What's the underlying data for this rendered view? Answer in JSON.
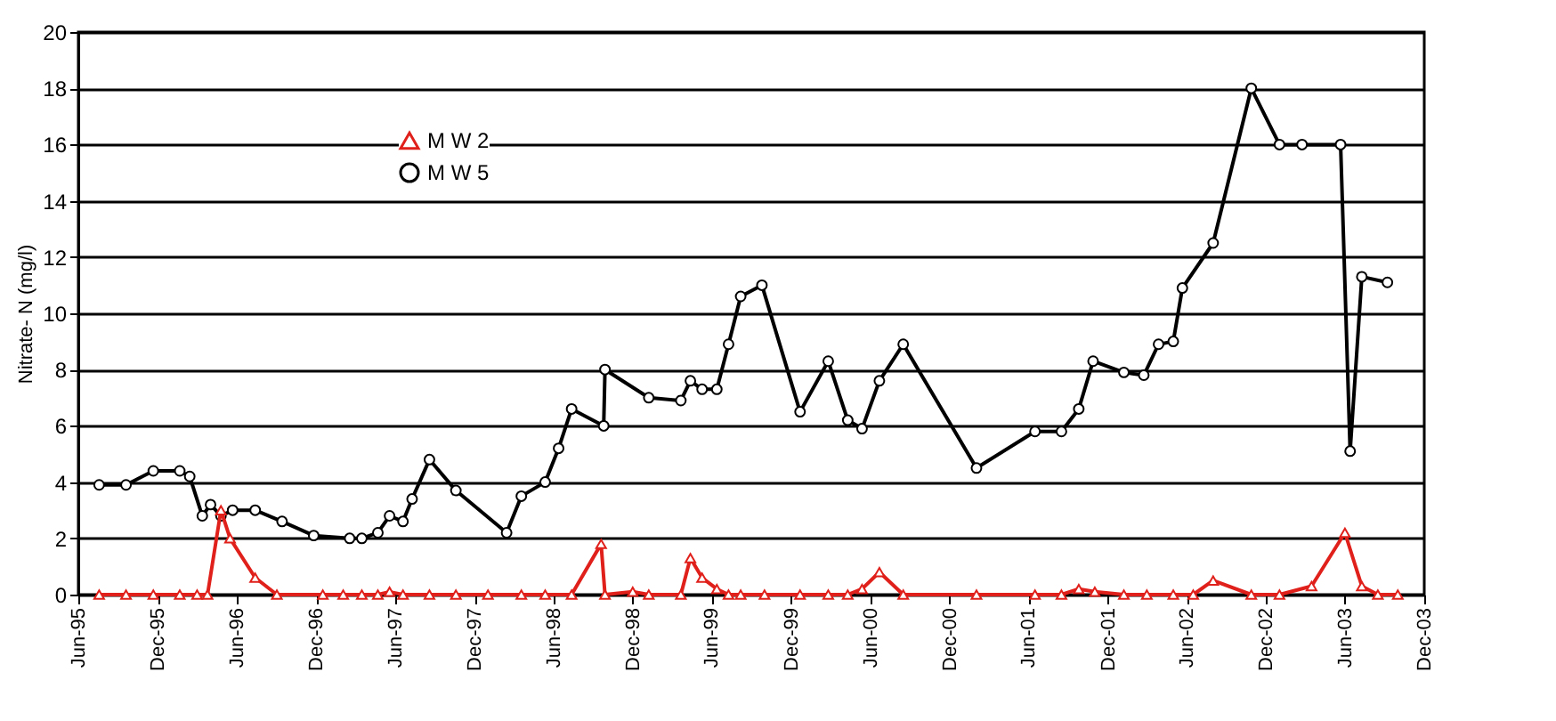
{
  "chart_data": {
    "type": "line",
    "ylabel": "Nitrate- N (mg/l)",
    "xlim": [
      "1995-06-01",
      "2003-12-01"
    ],
    "xticks": [
      {
        "value": "1995-06-01",
        "label": "Jun-95"
      },
      {
        "value": "1995-12-01",
        "label": "Dec-95"
      },
      {
        "value": "1996-06-01",
        "label": "Jun-96"
      },
      {
        "value": "1996-12-01",
        "label": "Dec-96"
      },
      {
        "value": "1997-06-01",
        "label": "Jun-97"
      },
      {
        "value": "1997-12-01",
        "label": "Dec-97"
      },
      {
        "value": "1998-06-01",
        "label": "Jun-98"
      },
      {
        "value": "1998-12-01",
        "label": "Dec-98"
      },
      {
        "value": "1999-06-01",
        "label": "Jun-99"
      },
      {
        "value": "1999-12-01",
        "label": "Dec-99"
      },
      {
        "value": "2000-06-01",
        "label": "Jun-00"
      },
      {
        "value": "2000-12-01",
        "label": "Dec-00"
      },
      {
        "value": "2001-06-01",
        "label": "Jun-01"
      },
      {
        "value": "2001-12-01",
        "label": "Dec-01"
      },
      {
        "value": "2002-06-01",
        "label": "Jun-02"
      },
      {
        "value": "2002-12-01",
        "label": "Dec-02"
      },
      {
        "value": "2003-06-01",
        "label": "Jun-03"
      },
      {
        "value": "2003-12-01",
        "label": "Dec-03"
      }
    ],
    "ylim": [
      0,
      20
    ],
    "yticks": [
      0,
      2,
      4,
      6,
      8,
      10,
      12,
      14,
      16,
      18,
      20
    ],
    "grid": "y",
    "legend": "top left",
    "line_style": "solid",
    "series": [
      {
        "name": "M W 2",
        "color": "#e0201b",
        "marker": "triangle",
        "x": [
          "1995-07-19",
          "1995-09-19",
          "1995-11-21",
          "1996-01-21",
          "1996-03-01",
          "1996-03-25",
          "1996-04-25",
          "1996-05-16",
          "1996-07-13",
          "1996-09-01",
          "1996-12-16",
          "1997-02-01",
          "1997-03-16",
          "1997-04-22",
          "1997-05-19",
          "1997-06-19",
          "1997-08-19",
          "1997-10-19",
          "1998-01-01",
          "1998-03-19",
          "1998-05-13",
          "1998-07-13",
          "1998-09-19",
          "1998-09-28",
          "1998-12-01",
          "1999-01-07",
          "1999-03-22",
          "1999-04-13",
          "1999-05-10",
          "1999-06-13",
          "1999-07-10",
          "1999-08-07",
          "1999-10-01",
          "1999-12-22",
          "2000-02-25",
          "2000-04-10",
          "2000-05-13",
          "2000-06-22",
          "2000-08-16",
          "2001-02-01",
          "2001-06-16",
          "2001-08-16",
          "2001-09-25",
          "2001-11-01",
          "2002-01-07",
          "2002-03-01",
          "2002-05-01",
          "2002-06-16",
          "2002-08-01",
          "2002-10-28",
          "2003-01-01",
          "2003-03-16",
          "2003-06-01",
          "2003-07-10",
          "2003-08-16",
          "2003-10-01"
        ],
        "values": [
          0,
          0,
          0,
          0,
          0,
          0,
          3.0,
          2.0,
          0.6,
          0,
          0,
          0,
          0,
          0,
          0.1,
          0,
          0,
          0,
          0,
          0,
          0,
          0,
          1.8,
          0,
          0.1,
          0,
          0,
          1.3,
          0.6,
          0.2,
          0,
          0,
          0,
          0,
          0,
          0,
          0.2,
          0.8,
          0,
          0,
          0,
          0,
          0.2,
          0.1,
          0,
          0,
          0,
          0,
          0.5,
          0,
          0,
          0.3,
          2.2,
          0.3,
          0,
          0
        ]
      },
      {
        "name": "M W 5",
        "color": "#000000",
        "marker": "circle",
        "x": [
          "1995-07-19",
          "1995-09-19",
          "1995-11-21",
          "1996-01-21",
          "1996-02-13",
          "1996-03-13",
          "1996-04-01",
          "1996-04-25",
          "1996-05-22",
          "1996-07-13",
          "1996-09-13",
          "1996-11-25",
          "1997-02-16",
          "1997-03-16",
          "1997-04-22",
          "1997-05-19",
          "1997-06-19",
          "1997-07-10",
          "1997-08-19",
          "1997-10-19",
          "1998-02-13",
          "1998-03-19",
          "1998-05-13",
          "1998-06-13",
          "1998-07-13",
          "1998-09-25",
          "1998-09-28",
          "1999-01-07",
          "1999-03-22",
          "1999-04-13",
          "1999-05-10",
          "1999-06-13",
          "1999-07-10",
          "1999-08-07",
          "1999-09-25",
          "1999-12-22",
          "2000-02-25",
          "2000-04-10",
          "2000-05-13",
          "2000-06-22",
          "2000-08-16",
          "2001-02-01",
          "2001-06-16",
          "2001-08-16",
          "2001-09-25",
          "2001-10-28",
          "2002-01-07",
          "2002-02-22",
          "2002-03-28",
          "2002-05-01",
          "2002-05-22",
          "2002-08-01",
          "2002-10-28",
          "2003-01-01",
          "2003-02-22",
          "2003-05-22",
          "2003-06-13",
          "2003-07-10",
          "2003-09-07"
        ],
        "values": [
          3.9,
          3.9,
          4.4,
          4.4,
          4.2,
          2.8,
          3.2,
          2.8,
          3.0,
          3.0,
          2.6,
          2.1,
          2.0,
          2.0,
          2.2,
          2.8,
          2.6,
          3.4,
          4.8,
          3.7,
          2.2,
          3.5,
          4.0,
          5.2,
          6.6,
          6.0,
          8.0,
          7.0,
          6.9,
          7.6,
          7.3,
          7.3,
          8.9,
          10.6,
          11.0,
          6.5,
          8.3,
          6.2,
          5.9,
          7.6,
          8.9,
          4.5,
          5.8,
          5.8,
          6.6,
          8.3,
          7.9,
          7.8,
          8.9,
          9.0,
          10.9,
          12.5,
          18.0,
          16.0,
          16.0,
          16.0,
          5.1,
          11.3,
          11.1
        ]
      }
    ]
  }
}
